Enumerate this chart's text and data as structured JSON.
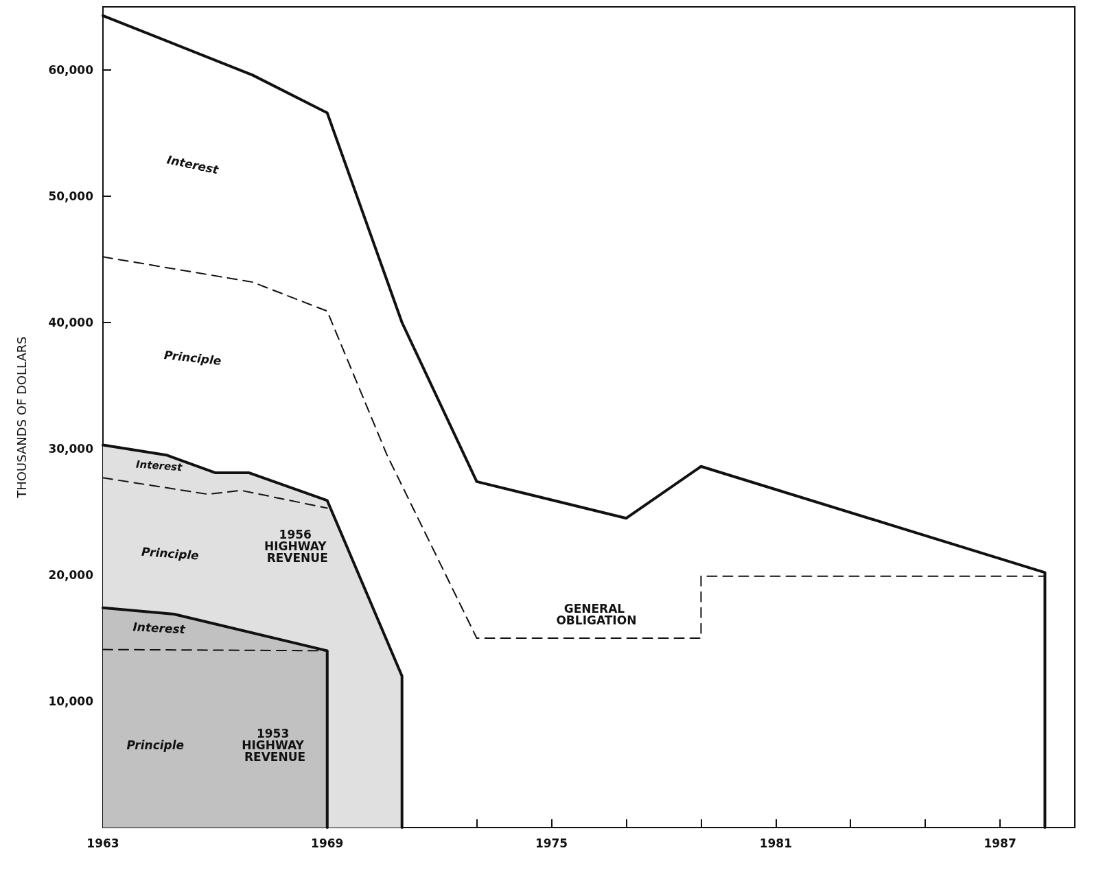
{
  "chart_data": {
    "type": "line",
    "ylabel": "THOUSANDS OF DOLLARS",
    "xlim": [
      1963,
      1989
    ],
    "ylim": [
      0,
      65000
    ],
    "xticks": [
      1963,
      {
        "value": 1965,
        "label": null
      },
      {
        "value": 1967,
        "label": null
      },
      1969,
      {
        "value": 1971,
        "label": null
      },
      {
        "value": 1973,
        "label": null
      },
      1975,
      {
        "value": 1977,
        "label": null
      },
      {
        "value": 1979,
        "label": null
      },
      1981,
      {
        "value": 1983,
        "label": null
      },
      {
        "value": 1985,
        "label": null
      },
      1987,
      {
        "value": 1989,
        "label": null
      }
    ],
    "yticks": [
      {
        "value": 10000,
        "label": "10,000"
      },
      {
        "value": 20000,
        "label": "20,000"
      },
      {
        "value": 30000,
        "label": "30,000"
      },
      {
        "value": 40000,
        "label": "40,000"
      },
      {
        "value": 50000,
        "label": "50,000"
      },
      {
        "value": 60000,
        "label": "60,000"
      }
    ],
    "grid": false,
    "marker": "none",
    "series": [
      {
        "color": "#111111",
        "line_style": "solid",
        "x": [
          1963,
          1967,
          1969,
          1971,
          1973,
          1977,
          1979,
          1988.2,
          1988.2
        ],
        "values": [
          64300,
          59600,
          56600,
          40000,
          27400,
          24500,
          28600,
          20200,
          0
        ]
      },
      {
        "color": "#111111",
        "line_style": "dashed",
        "x": [
          1963,
          1967,
          1969,
          1970.6,
          1973,
          1979,
          1979,
          1988.2
        ],
        "values": [
          45200,
          43200,
          40900,
          29500,
          15000,
          15000,
          19900,
          19900
        ]
      },
      {
        "type": "area",
        "color": "#111111",
        "line_style": "solid",
        "x": [
          1963,
          1964.7,
          1966,
          1966.9,
          1969,
          1971,
          1971
        ],
        "values": [
          30300,
          29500,
          28100,
          28100,
          25900,
          12000,
          0
        ]
      },
      {
        "color": "#111111",
        "line_style": "dashed",
        "x": [
          1963,
          1965.8,
          1966.7,
          1969
        ],
        "values": [
          27700,
          26400,
          26700,
          25300
        ]
      },
      {
        "type": "area",
        "color": "#111111",
        "line_style": "solid",
        "x": [
          1963,
          1964.9,
          1969,
          1969
        ],
        "values": [
          17400,
          16900,
          14000,
          0
        ]
      },
      {
        "color": "#111111",
        "line_style": "dashed",
        "x": [
          1963,
          1969
        ],
        "values": [
          14100,
          14000
        ]
      }
    ],
    "annotations": [
      "Interest",
      "Principle",
      "Interest",
      "Principle",
      "1956 HIGHWAY REVENUE",
      "Interest",
      "Principle",
      "1953 HIGHWAY REVENUE",
      "GENERAL OBLIGATION"
    ]
  }
}
